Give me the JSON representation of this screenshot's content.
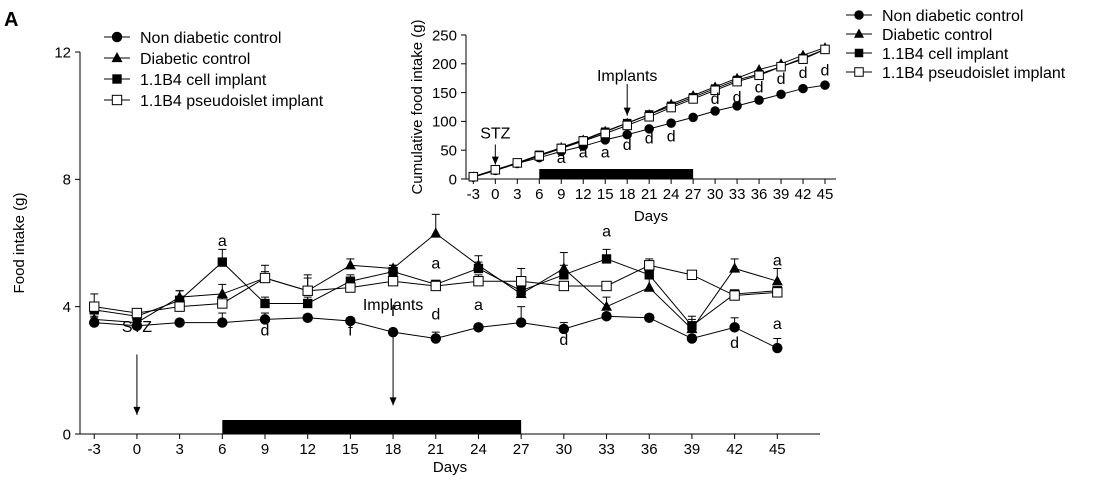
{
  "panel_label": "A",
  "chart_data": [
    {
      "type": "line",
      "title": "",
      "xlabel": "Days",
      "ylabel": "Food intake (g)",
      "x": [
        -3,
        0,
        3,
        6,
        9,
        12,
        15,
        18,
        21,
        24,
        27,
        30,
        33,
        36,
        39,
        42,
        45
      ],
      "xlim": [
        -4,
        48
      ],
      "ylim": [
        0,
        12
      ],
      "xticks": [
        -3,
        0,
        3,
        6,
        9,
        12,
        15,
        18,
        21,
        24,
        27,
        30,
        33,
        36,
        39,
        42,
        45
      ],
      "yticks": [
        0,
        4,
        8,
        12
      ],
      "legend_position": "top-left",
      "series": [
        {
          "name": "Non diabetic control",
          "marker": "circle-filled",
          "values": [
            3.5,
            3.4,
            3.5,
            3.5,
            3.6,
            3.65,
            3.55,
            3.2,
            3.0,
            3.35,
            3.5,
            3.3,
            3.7,
            3.65,
            3.0,
            3.35,
            2.7
          ],
          "errors": [
            0.15,
            0.1,
            0.1,
            0.3,
            0.2,
            0.1,
            0.1,
            0.1,
            0.2,
            0.1,
            0.5,
            0.2,
            0.1,
            0.1,
            0.1,
            0.3,
            0.3
          ]
        },
        {
          "name": "Diabetic control",
          "marker": "triangle-filled",
          "values": [
            3.6,
            3.5,
            4.3,
            4.4,
            4.9,
            4.5,
            5.3,
            5.2,
            6.3,
            5.3,
            4.4,
            5.2,
            4.0,
            4.6,
            3.3,
            5.2,
            4.8
          ],
          "errors": [
            0.1,
            0.1,
            0.2,
            0.3,
            0.4,
            0.5,
            0.2,
            0.1,
            0.6,
            0.3,
            0.3,
            0.5,
            0.3,
            0.4,
            0.4,
            0.3,
            0.4
          ]
        },
        {
          "name": "1.1B4 cell implant",
          "marker": "square-filled",
          "values": [
            3.9,
            3.7,
            4.2,
            5.4,
            4.1,
            4.1,
            4.8,
            5.1,
            4.7,
            5.2,
            4.5,
            5.0,
            5.5,
            5.0,
            3.4,
            4.4,
            4.5
          ],
          "errors": [
            0.2,
            0.1,
            0.3,
            0.4,
            0.2,
            0.2,
            0.2,
            0.2,
            0.1,
            0.2,
            0.3,
            0.3,
            0.3,
            0.4,
            0.2,
            0.1,
            0.1
          ]
        },
        {
          "name": "1.1B4 pseudoislet implant",
          "marker": "square-open",
          "values": [
            4.0,
            3.8,
            4.0,
            4.1,
            4.9,
            4.5,
            4.6,
            4.8,
            4.65,
            4.8,
            4.8,
            4.65,
            4.65,
            5.3,
            5.0,
            4.35,
            4.45
          ],
          "errors": [
            0.4,
            0.1,
            0.1,
            0.2,
            0.2,
            0.4,
            0.1,
            0.1,
            0.1,
            0.2,
            0.4,
            0.1,
            0.1,
            0.2,
            0.1,
            0.1,
            0.1
          ]
        }
      ],
      "annotations": [
        {
          "text": "a",
          "x": 6,
          "y": 5.9
        },
        {
          "text": "d",
          "x": 9,
          "y": 3.1
        },
        {
          "text": "f",
          "x": 15,
          "y": 3.1
        },
        {
          "text": "f",
          "x": 18,
          "y": 3.7
        },
        {
          "text": "a",
          "x": 21,
          "y": 5.2
        },
        {
          "text": "d",
          "x": 21,
          "y": 3.6
        },
        {
          "text": "a",
          "x": 24,
          "y": 3.9
        },
        {
          "text": "d",
          "x": 30,
          "y": 2.8
        },
        {
          "text": "a",
          "x": 33,
          "y": 6.2
        },
        {
          "text": "d",
          "x": 42,
          "y": 2.7
        },
        {
          "text": "a",
          "x": 45,
          "y": 5.3
        },
        {
          "text": "a",
          "x": 45,
          "y": 3.3
        }
      ],
      "event_markers": [
        {
          "text": "STZ",
          "x": 0,
          "arrow_from": 2.5,
          "arrow_to": 0.6,
          "label_y": 3.2
        },
        {
          "text": "Implants",
          "x": 18,
          "arrow_from": 3.2,
          "arrow_to": 0.9,
          "label_y": 3.9
        }
      ],
      "treatment_bar": {
        "start": 6,
        "end": 27
      }
    },
    {
      "type": "line",
      "title": "",
      "xlabel": "Days",
      "ylabel": "Cumulative food intake (g)",
      "x": [
        -3,
        0,
        3,
        6,
        9,
        12,
        15,
        18,
        21,
        24,
        27,
        30,
        33,
        36,
        39,
        42,
        45
      ],
      "xlim": [
        -4,
        46.5
      ],
      "ylim": [
        0,
        250
      ],
      "xticks": [
        -3,
        0,
        3,
        6,
        9,
        12,
        15,
        18,
        21,
        24,
        27,
        30,
        33,
        36,
        39,
        42,
        45
      ],
      "yticks": [
        0,
        50,
        100,
        150,
        200,
        250
      ],
      "legend_position": "top-right",
      "series": [
        {
          "name": "Non diabetic control",
          "marker": "circle-filled",
          "values": [
            3,
            15,
            27,
            37,
            48,
            57,
            68,
            77,
            87,
            97,
            107,
            118,
            127,
            137,
            147,
            157,
            163
          ]
        },
        {
          "name": "Diabetic control",
          "marker": "triangle-filled",
          "values": [
            4,
            15,
            27,
            40,
            55,
            68,
            83,
            97,
            112,
            130,
            145,
            160,
            175,
            190,
            200,
            215,
            228
          ]
        },
        {
          "name": "1.1B4 cell implant",
          "marker": "square-filled",
          "values": [
            4,
            16,
            28,
            42,
            54,
            67,
            82,
            97,
            112,
            127,
            142,
            157,
            172,
            182,
            195,
            210,
            225
          ]
        },
        {
          "name": "1.1B4 pseudoislet implant",
          "marker": "square-open",
          "values": [
            4,
            16,
            28,
            40,
            53,
            66,
            79,
            93,
            108,
            124,
            139,
            154,
            169,
            180,
            195,
            208,
            225
          ]
        }
      ],
      "annotations": [
        {
          "text": "a",
          "x": 9,
          "y": 28
        },
        {
          "text": "a",
          "x": 12,
          "y": 37
        },
        {
          "text": "a",
          "x": 15,
          "y": 37
        },
        {
          "text": "d",
          "x": 18,
          "y": 50
        },
        {
          "text": "d",
          "x": 21,
          "y": 62
        },
        {
          "text": "d",
          "x": 24,
          "y": 65
        },
        {
          "text": "d",
          "x": 30,
          "y": 130
        },
        {
          "text": "d",
          "x": 33,
          "y": 133
        },
        {
          "text": "d",
          "x": 36,
          "y": 150
        },
        {
          "text": "d",
          "x": 39,
          "y": 165
        },
        {
          "text": "d",
          "x": 42,
          "y": 175
        },
        {
          "text": "d",
          "x": 45,
          "y": 180
        }
      ],
      "event_markers": [
        {
          "text": "STZ",
          "x": 0,
          "arrow_from": 60,
          "arrow_to": 25,
          "label_y": 70
        },
        {
          "text": "Implants",
          "x": 18,
          "arrow_from": 165,
          "arrow_to": 110,
          "label_y": 170
        }
      ],
      "treatment_bar": {
        "start": 6,
        "end": 27
      }
    }
  ]
}
